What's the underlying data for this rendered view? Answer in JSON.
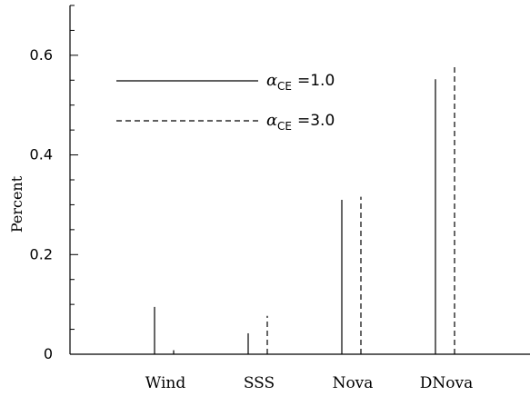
{
  "chart_data": {
    "type": "bar",
    "title": "",
    "xlabel": "",
    "ylabel": "Percent",
    "categories": [
      "Wind",
      "SSS",
      "Nova",
      "DNova"
    ],
    "yticks": [
      {
        "value": 0,
        "label": "0"
      },
      {
        "value": 0.2,
        "label": "0.2"
      },
      {
        "value": 0.4,
        "label": "0.4"
      },
      {
        "value": 0.6,
        "label": "0.6"
      }
    ],
    "ylim": [
      0,
      0.7
    ],
    "grid": false,
    "legend_position": "top-left",
    "series": [
      {
        "symbol": "α",
        "sub": "CE",
        "text": "=1.0",
        "line_style": "solid",
        "values": [
          0.095,
          0.042,
          0.31,
          0.552
        ]
      },
      {
        "symbol": "α",
        "sub": "CE",
        "text": "=3.0",
        "line_style": "dashed",
        "values": [
          0.008,
          0.077,
          0.316,
          0.577
        ]
      }
    ],
    "color": "#000000"
  }
}
